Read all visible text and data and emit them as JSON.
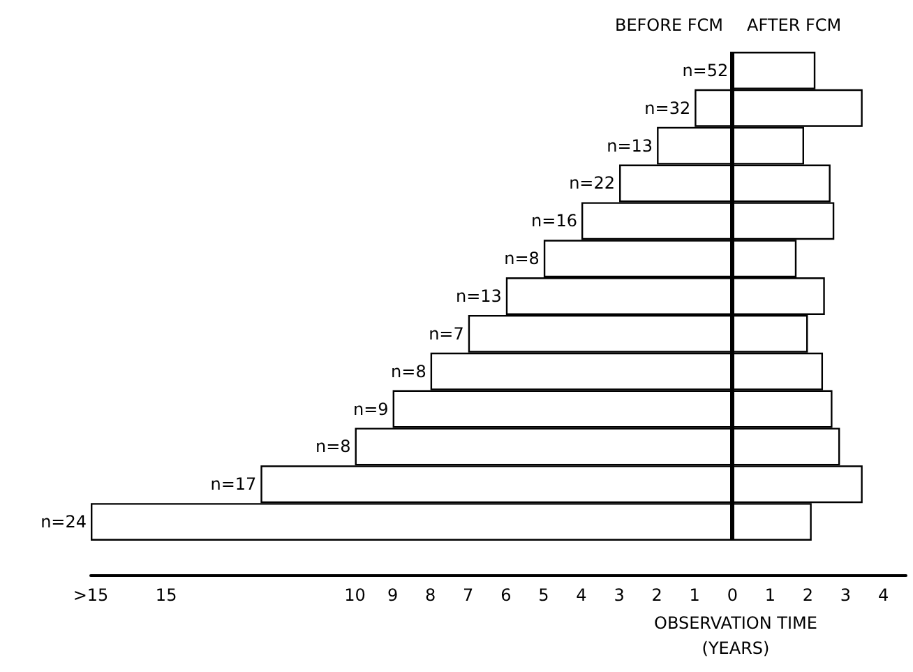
{
  "chart_data": {
    "type": "bar",
    "orientation": "horizontal",
    "categories": [
      "n=52",
      "n=32",
      "n=13",
      "n=22",
      "n=16",
      "n=8",
      "n=13",
      "n=7",
      "n=8",
      "n=9",
      "n=8",
      "n=17",
      "n=24"
    ],
    "stacked": true,
    "series": [
      {
        "color": "#ffffff",
        "values": [
          0,
          -1,
          -2,
          -3,
          -4,
          -5,
          -6,
          -7,
          -8,
          -9,
          -10,
          -12.5,
          -17
        ]
      },
      {
        "color": "#ffffff",
        "values": [
          2.2,
          3.45,
          1.9,
          2.6,
          2.7,
          1.7,
          2.45,
          2.0,
          2.4,
          2.65,
          2.85,
          3.45,
          2.1
        ]
      }
    ],
    "xlabel": "OBSERVATION TIME\n(YEARS)",
    "xlim": [
      -17,
      4.6
    ],
    "xticks": [
      {
        "value": -17,
        "label": ">15"
      },
      {
        "value": -15,
        "label": "15"
      },
      {
        "value": -10,
        "label": "10"
      },
      {
        "value": -9,
        "label": "9"
      },
      {
        "value": -8,
        "label": "8"
      },
      {
        "value": -7,
        "label": "7"
      },
      {
        "value": -6,
        "label": "6"
      },
      {
        "value": -5,
        "label": "5"
      },
      {
        "value": -4,
        "label": "4"
      },
      {
        "value": -3,
        "label": "3"
      },
      {
        "value": -2,
        "label": "2"
      },
      {
        "value": -1,
        "label": "1"
      },
      0,
      1,
      2,
      3,
      4
    ],
    "annotations": [
      "BEFORE FCM",
      "AFTER FCM"
    ],
    "ref_lines": [
      {
        "axis": "x",
        "value": 0
      }
    ],
    "grid": false
  }
}
